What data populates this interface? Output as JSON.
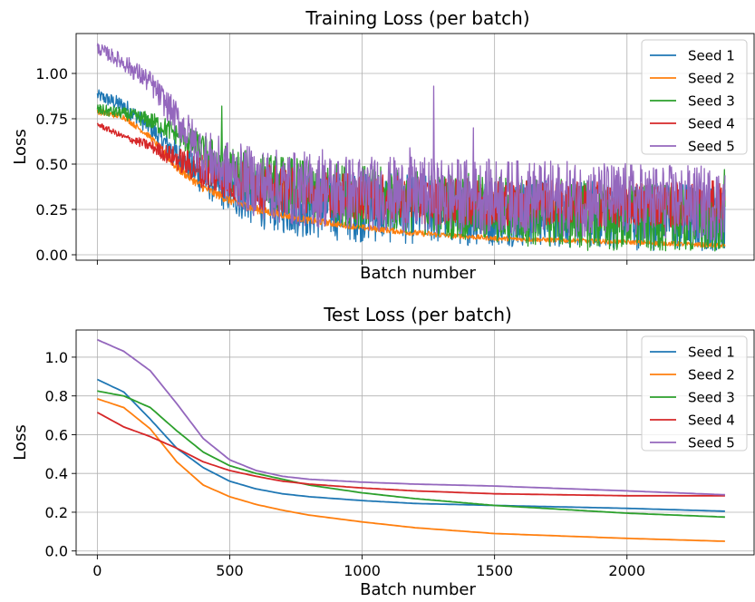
{
  "chart_data": [
    {
      "type": "line",
      "title": "Training Loss (per batch)",
      "xlabel": "Batch number",
      "ylabel": "Loss",
      "xlim": [
        -80,
        2480
      ],
      "ylim": [
        -0.03,
        1.22
      ],
      "xticks": [
        0,
        500,
        1000,
        1500,
        2000
      ],
      "xtick_labels": [
        "",
        "",
        "",
        "",
        ""
      ],
      "yticks": [
        0.0,
        0.25,
        0.5,
        0.75,
        1.0
      ],
      "ytick_labels": [
        "0.00",
        "0.25",
        "0.50",
        "0.75",
        "1.00"
      ],
      "grid": true,
      "legend_position": "top-right",
      "noisy": true,
      "x_max": 2370,
      "series": [
        {
          "name": "Seed 1",
          "color": "#1f77b4",
          "x": [
            0,
            100,
            200,
            300,
            400,
            500,
            600,
            700,
            800,
            1000,
            1200,
            1500,
            2000,
            2370
          ],
          "values": [
            0.88,
            0.82,
            0.7,
            0.55,
            0.42,
            0.35,
            0.31,
            0.29,
            0.28,
            0.26,
            0.25,
            0.24,
            0.22,
            0.2
          ],
          "noise": [
            0.02,
            0.03,
            0.03,
            0.05,
            0.06,
            0.08,
            0.1,
            0.11,
            0.12,
            0.12,
            0.12,
            0.12,
            0.12,
            0.12
          ]
        },
        {
          "name": "Seed 2",
          "color": "#ff7f0e",
          "x": [
            0,
            100,
            200,
            300,
            400,
            500,
            600,
            700,
            800,
            1000,
            1200,
            1500,
            2000,
            2370
          ],
          "values": [
            0.79,
            0.76,
            0.65,
            0.48,
            0.37,
            0.3,
            0.25,
            0.22,
            0.19,
            0.15,
            0.12,
            0.09,
            0.07,
            0.05
          ],
          "noise": [
            0.01,
            0.01,
            0.01,
            0.015,
            0.015,
            0.015,
            0.015,
            0.012,
            0.012,
            0.01,
            0.01,
            0.008,
            0.008,
            0.008
          ]
        },
        {
          "name": "Seed 3",
          "color": "#2ca02c",
          "x": [
            0,
            100,
            200,
            300,
            400,
            500,
            600,
            700,
            800,
            1000,
            1200,
            1500,
            2000,
            2370
          ],
          "values": [
            0.8,
            0.78,
            0.74,
            0.67,
            0.57,
            0.47,
            0.42,
            0.39,
            0.36,
            0.32,
            0.29,
            0.25,
            0.2,
            0.18
          ],
          "noise": [
            0.02,
            0.02,
            0.03,
            0.04,
            0.06,
            0.08,
            0.09,
            0.1,
            0.1,
            0.11,
            0.11,
            0.12,
            0.12,
            0.12
          ]
        },
        {
          "name": "Seed 4",
          "color": "#d62728",
          "x": [
            0,
            100,
            200,
            300,
            400,
            500,
            600,
            700,
            800,
            1000,
            1200,
            1500,
            2000,
            2370
          ],
          "values": [
            0.72,
            0.65,
            0.6,
            0.53,
            0.46,
            0.41,
            0.38,
            0.36,
            0.34,
            0.32,
            0.3,
            0.29,
            0.28,
            0.28
          ],
          "noise": [
            0.01,
            0.01,
            0.02,
            0.04,
            0.06,
            0.07,
            0.08,
            0.08,
            0.08,
            0.08,
            0.08,
            0.08,
            0.08,
            0.08
          ]
        },
        {
          "name": "Seed 5",
          "color": "#9467bd",
          "x": [
            0,
            100,
            200,
            300,
            400,
            500,
            600,
            700,
            800,
            1000,
            1200,
            1500,
            2000,
            2370
          ],
          "values": [
            1.14,
            1.06,
            0.95,
            0.75,
            0.55,
            0.45,
            0.4,
            0.37,
            0.36,
            0.34,
            0.33,
            0.32,
            0.3,
            0.28
          ],
          "noise": [
            0.02,
            0.03,
            0.04,
            0.06,
            0.09,
            0.11,
            0.12,
            0.13,
            0.13,
            0.13,
            0.13,
            0.13,
            0.13,
            0.13
          ]
        }
      ],
      "spikes": [
        {
          "series": "Seed 3",
          "x": 470,
          "value": 0.82
        },
        {
          "series": "Seed 5",
          "x": 850,
          "value": 0.58
        },
        {
          "series": "Seed 5",
          "x": 1180,
          "value": 0.59
        },
        {
          "series": "Seed 5",
          "x": 1270,
          "value": 0.93
        },
        {
          "series": "Seed 5",
          "x": 1420,
          "value": 0.7
        },
        {
          "series": "Seed 3",
          "x": 2368,
          "value": 0.47
        }
      ]
    },
    {
      "type": "line",
      "title": "Test Loss (per batch)",
      "xlabel": "Batch number",
      "ylabel": "Loss",
      "xlim": [
        -80,
        2480
      ],
      "ylim": [
        -0.02,
        1.14
      ],
      "xticks": [
        0,
        500,
        1000,
        1500,
        2000
      ],
      "xtick_labels": [
        "0",
        "500",
        "1000",
        "1500",
        "2000"
      ],
      "yticks": [
        0.0,
        0.2,
        0.4,
        0.6,
        0.8,
        1.0
      ],
      "ytick_labels": [
        "0.0",
        "0.2",
        "0.4",
        "0.6",
        "0.8",
        "1.0"
      ],
      "grid": true,
      "legend_position": "top-right",
      "noisy": false,
      "series": [
        {
          "name": "Seed 1",
          "color": "#1f77b4",
          "x": [
            0,
            100,
            200,
            300,
            400,
            500,
            600,
            700,
            800,
            1000,
            1200,
            1500,
            2000,
            2370
          ],
          "values": [
            0.885,
            0.82,
            0.68,
            0.53,
            0.43,
            0.36,
            0.32,
            0.295,
            0.28,
            0.26,
            0.245,
            0.235,
            0.22,
            0.205
          ]
        },
        {
          "name": "Seed 2",
          "color": "#ff7f0e",
          "x": [
            0,
            100,
            200,
            300,
            400,
            500,
            600,
            700,
            800,
            1000,
            1200,
            1500,
            2000,
            2370
          ],
          "values": [
            0.785,
            0.74,
            0.63,
            0.46,
            0.34,
            0.28,
            0.24,
            0.21,
            0.185,
            0.15,
            0.12,
            0.09,
            0.065,
            0.05
          ]
        },
        {
          "name": "Seed 3",
          "color": "#2ca02c",
          "x": [
            0,
            100,
            200,
            300,
            400,
            500,
            600,
            700,
            800,
            1000,
            1200,
            1500,
            2000,
            2370
          ],
          "values": [
            0.825,
            0.8,
            0.74,
            0.62,
            0.51,
            0.44,
            0.4,
            0.37,
            0.34,
            0.3,
            0.27,
            0.235,
            0.195,
            0.175
          ]
        },
        {
          "name": "Seed 4",
          "color": "#d62728",
          "x": [
            0,
            100,
            200,
            300,
            400,
            500,
            600,
            700,
            800,
            1000,
            1200,
            1500,
            2000,
            2370
          ],
          "values": [
            0.715,
            0.64,
            0.59,
            0.53,
            0.46,
            0.415,
            0.385,
            0.36,
            0.345,
            0.325,
            0.31,
            0.295,
            0.285,
            0.285
          ]
        },
        {
          "name": "Seed 5",
          "color": "#9467bd",
          "x": [
            0,
            100,
            200,
            300,
            400,
            500,
            600,
            700,
            800,
            1000,
            1200,
            1500,
            2000,
            2370
          ],
          "values": [
            1.09,
            1.03,
            0.93,
            0.76,
            0.58,
            0.47,
            0.415,
            0.385,
            0.37,
            0.355,
            0.345,
            0.335,
            0.31,
            0.29
          ]
        }
      ]
    }
  ]
}
